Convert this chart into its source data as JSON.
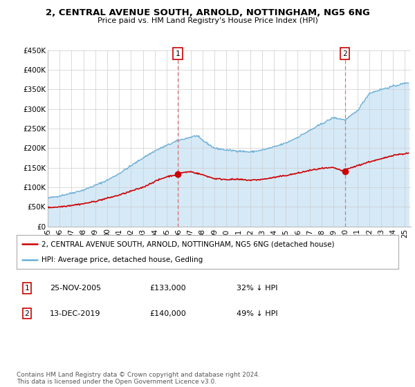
{
  "title": "2, CENTRAL AVENUE SOUTH, ARNOLD, NOTTINGHAM, NG5 6NG",
  "subtitle": "Price paid vs. HM Land Registry's House Price Index (HPI)",
  "ylim": [
    0,
    450000
  ],
  "yticks": [
    0,
    50000,
    100000,
    150000,
    200000,
    250000,
    300000,
    350000,
    400000,
    450000
  ],
  "ytick_labels": [
    "£0",
    "£50K",
    "£100K",
    "£150K",
    "£200K",
    "£250K",
    "£300K",
    "£350K",
    "£400K",
    "£450K"
  ],
  "xlim_start": 1995.0,
  "xlim_end": 2025.5,
  "xtick_years": [
    1995,
    1996,
    1997,
    1998,
    1999,
    2000,
    2001,
    2002,
    2003,
    2004,
    2005,
    2006,
    2007,
    2008,
    2009,
    2010,
    2011,
    2012,
    2013,
    2014,
    2015,
    2016,
    2017,
    2018,
    2019,
    2020,
    2021,
    2022,
    2023,
    2024,
    2025
  ],
  "hpi_color": "#6aaed6",
  "hpi_fill_color": "#d6e9f7",
  "price_color": "#cc0000",
  "vline_color": "#e07070",
  "transaction1_x": 2005.92,
  "transaction1_y": 133000,
  "transaction2_x": 2019.96,
  "transaction2_y": 140000,
  "legend_price_label": "2, CENTRAL AVENUE SOUTH, ARNOLD, NOTTINGHAM, NG5 6NG (detached house)",
  "legend_hpi_label": "HPI: Average price, detached house, Gedling",
  "footnote": "Contains HM Land Registry data © Crown copyright and database right 2024.\nThis data is licensed under the Open Government Licence v3.0.",
  "bg_color": "#ffffff",
  "grid_color": "#cccccc",
  "hpi_control_x": [
    1995,
    1996,
    1997,
    1998,
    1999,
    2000,
    2001,
    2002,
    2003,
    2004,
    2005,
    2006,
    2007,
    2007.5,
    2008,
    2009,
    2010,
    2011,
    2012,
    2013,
    2014,
    2015,
    2016,
    2017,
    2018,
    2019,
    2020,
    2021,
    2022,
    2023,
    2024,
    2025.3
  ],
  "hpi_control_y": [
    72000,
    78000,
    85000,
    93000,
    105000,
    118000,
    135000,
    155000,
    175000,
    193000,
    207000,
    220000,
    228000,
    232000,
    220000,
    200000,
    195000,
    193000,
    190000,
    195000,
    203000,
    213000,
    228000,
    245000,
    262000,
    278000,
    272000,
    295000,
    340000,
    350000,
    358000,
    368000
  ],
  "price_control_x": [
    1995,
    1996,
    1997,
    1998,
    1999,
    2000,
    2001,
    2002,
    2003,
    2004,
    2005,
    2005.92,
    2006,
    2007,
    2008,
    2009,
    2010,
    2011,
    2012,
    2013,
    2014,
    2015,
    2016,
    2017,
    2018,
    2019,
    2019.96,
    2020,
    2021,
    2022,
    2023,
    2024,
    2025.3
  ],
  "price_control_y": [
    48000,
    50000,
    54000,
    58000,
    64000,
    72000,
    80000,
    90000,
    100000,
    115000,
    127000,
    133000,
    136000,
    140000,
    132000,
    122000,
    120000,
    120000,
    118000,
    120000,
    125000,
    130000,
    136000,
    143000,
    148000,
    150000,
    140000,
    145000,
    155000,
    165000,
    172000,
    182000,
    187000
  ]
}
